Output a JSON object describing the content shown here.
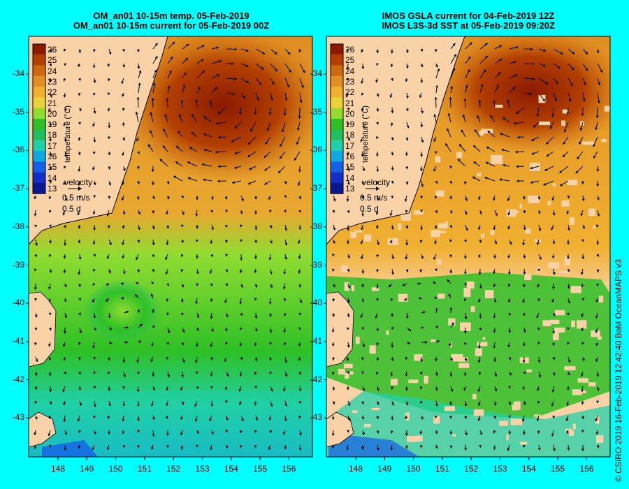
{
  "left_panel": {
    "title_line1": "OM_an01 10-15m temp. 05-Feb-2019",
    "title_line2": "OM_an01 10-15m current for 05-Feb-2019 00Z"
  },
  "right_panel": {
    "title_line1": "IMOS GSLA current for 04-Feb-2019 12Z",
    "title_line2": "IMOS L3S-3d SST at 05-Feb-2019 09:20Z"
  },
  "colorbar": {
    "label": "temperature (°C)",
    "ticks": [
      "26",
      "25",
      "24",
      "23",
      "22",
      "21",
      "20",
      "19",
      "18",
      "17",
      "16",
      "15",
      "14",
      "13"
    ],
    "colors": [
      "#8b1a00",
      "#b34000",
      "#cc6a10",
      "#e08f22",
      "#f0b030",
      "#e8d43a",
      "#90dc30",
      "#2ec026",
      "#20c060",
      "#20d0a8",
      "#10a8e0",
      "#1460e8",
      "#1030c8",
      "#0a1890"
    ]
  },
  "velocity_key": {
    "label": "velocity",
    "speed": "0.5 m/s",
    "duration": "0.5 d"
  },
  "lat_labels": [
    "-34",
    "-35",
    "-36",
    "-37",
    "-38",
    "-39",
    "-40",
    "-41",
    "-42",
    "-43"
  ],
  "lon_labels": [
    "148",
    "149",
    "150",
    "151",
    "152",
    "153",
    "154",
    "155",
    "156"
  ],
  "side_text": "© CSIRO 2019   16-Feb-2019 12:42:40 BoM OceanMAPS v3",
  "colors": {
    "land": "#fad2a8",
    "background": "#00ffff",
    "warm": "#e08f22",
    "cool": "#2ec026"
  }
}
